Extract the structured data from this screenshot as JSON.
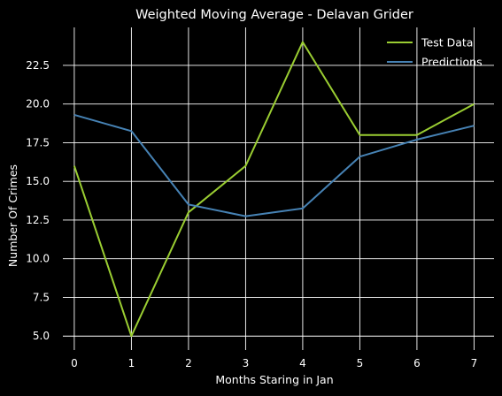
{
  "chart_data": {
    "type": "line",
    "title": "Weighted Moving Average - Delavan Grider",
    "xlabel": "Months Staring in Jan",
    "ylabel": "Number Of Crimes",
    "x": [
      0,
      1,
      2,
      3,
      4,
      5,
      6,
      7
    ],
    "xticks": [
      "0",
      "1",
      "2",
      "3",
      "4",
      "5",
      "6",
      "7"
    ],
    "yticks": [
      "5.0",
      "7.5",
      "10.0",
      "12.5",
      "15.0",
      "17.5",
      "20.0",
      "22.5"
    ],
    "xlim": [
      -0.2,
      7.35
    ],
    "ylim": [
      4.1,
      24.95
    ],
    "grid": true,
    "legend_position": "top-right",
    "series": [
      {
        "name": "Test Data",
        "color": "#9acd32",
        "values": [
          16,
          5,
          13,
          16,
          24,
          18,
          18,
          20
        ]
      },
      {
        "name": "Predictions",
        "color": "#4682b4",
        "values": [
          19.3,
          18.25,
          13.5,
          12.75,
          13.25,
          16.6,
          17.7,
          18.6
        ]
      }
    ],
    "colors": {
      "background": "#000000",
      "grid": "#ffffff",
      "text": "#ffffff"
    }
  }
}
